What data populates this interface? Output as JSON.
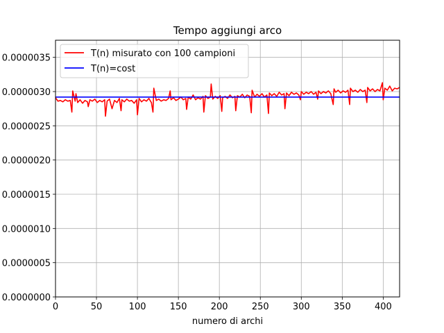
{
  "chart_data": {
    "type": "line",
    "title": "Tempo aggiungi arco",
    "xlabel": "numero di archi",
    "ylabel": "",
    "xlim": [
      0,
      420
    ],
    "ylim": [
      0.0,
      3.75e-06
    ],
    "xticks": [
      0,
      50,
      100,
      150,
      200,
      250,
      300,
      350,
      400
    ],
    "yticks": [
      0.0,
      5e-07,
      1e-06,
      1.5e-06,
      2e-06,
      2.5e-06,
      3e-06,
      3.5e-06
    ],
    "xtick_labels": [
      "0",
      "50",
      "100",
      "150",
      "200",
      "250",
      "300",
      "350",
      "400"
    ],
    "ytick_labels": [
      "0.0000000",
      "0.0000005",
      "0.0000010",
      "0.0000015",
      "0.0000020",
      "0.0000025",
      "0.0000030",
      "0.0000035"
    ],
    "grid": true,
    "legend_position": "upper-left",
    "series": [
      {
        "name": "T(n) misurato con 100 campioni",
        "color": "#ff0000",
        "x": [
          0,
          3,
          6,
          9,
          12,
          15,
          18,
          20,
          21,
          24,
          25,
          27,
          30,
          33,
          36,
          39,
          40,
          42,
          45,
          48,
          51,
          54,
          57,
          60,
          61,
          63,
          66,
          69,
          72,
          75,
          78,
          80,
          81,
          84,
          87,
          90,
          93,
          96,
          99,
          100,
          102,
          105,
          108,
          111,
          114,
          117,
          119,
          120,
          123,
          126,
          129,
          132,
          135,
          138,
          140,
          141,
          144,
          147,
          150,
          153,
          156,
          159,
          160,
          162,
          165,
          168,
          171,
          174,
          177,
          180,
          181,
          183,
          186,
          189,
          190,
          192,
          195,
          198,
          201,
          203,
          204,
          207,
          210,
          213,
          216,
          219,
          220,
          222,
          225,
          228,
          231,
          234,
          237,
          239,
          240,
          243,
          246,
          249,
          252,
          255,
          258,
          260,
          261,
          264,
          267,
          270,
          273,
          276,
          279,
          280,
          282,
          285,
          288,
          291,
          294,
          297,
          299,
          300,
          303,
          306,
          309,
          312,
          315,
          318,
          320,
          321,
          324,
          327,
          330,
          333,
          336,
          339,
          340,
          342,
          345,
          348,
          351,
          354,
          357,
          359,
          360,
          363,
          366,
          369,
          372,
          375,
          378,
          380,
          381,
          384,
          387,
          390,
          393,
          396,
          399,
          400,
          402,
          405,
          408,
          411,
          414,
          417,
          420
        ],
        "y": [
          2.91e-06,
          2.86e-06,
          2.87e-06,
          2.85e-06,
          2.88e-06,
          2.86e-06,
          2.87e-06,
          2.7e-06,
          3.01e-06,
          2.86e-06,
          2.97e-06,
          2.84e-06,
          2.88e-06,
          2.83e-06,
          2.87e-06,
          2.85e-06,
          2.78e-06,
          2.88e-06,
          2.86e-06,
          2.89e-06,
          2.84e-06,
          2.87e-06,
          2.85e-06,
          2.88e-06,
          2.64e-06,
          2.86e-06,
          2.89e-06,
          2.75e-06,
          2.87e-06,
          2.84e-06,
          2.9e-06,
          2.72e-06,
          2.88e-06,
          2.85e-06,
          2.89e-06,
          2.86e-06,
          2.87e-06,
          2.83e-06,
          2.88e-06,
          2.66e-06,
          2.9e-06,
          2.85e-06,
          2.88e-06,
          2.86e-06,
          2.9e-06,
          2.84e-06,
          2.7e-06,
          3.05e-06,
          2.87e-06,
          2.89e-06,
          2.86e-06,
          2.88e-06,
          2.87e-06,
          2.9e-06,
          3.01e-06,
          2.88e-06,
          2.91e-06,
          2.87e-06,
          2.89e-06,
          2.92e-06,
          2.88e-06,
          2.9e-06,
          2.74e-06,
          2.92e-06,
          2.89e-06,
          2.95e-06,
          2.88e-06,
          2.91e-06,
          2.89e-06,
          2.93e-06,
          2.7e-06,
          2.94e-06,
          2.9e-06,
          2.92e-06,
          3.11e-06,
          2.89e-06,
          2.93e-06,
          2.9e-06,
          2.94e-06,
          2.71e-06,
          2.91e-06,
          2.93e-06,
          2.9e-06,
          2.95e-06,
          2.91e-06,
          2.93e-06,
          2.72e-06,
          2.94e-06,
          2.92e-06,
          2.96e-06,
          2.91e-06,
          2.95e-06,
          2.93e-06,
          2.69e-06,
          3.02e-06,
          2.92e-06,
          2.96e-06,
          2.93e-06,
          2.97e-06,
          2.92e-06,
          2.95e-06,
          2.68e-06,
          2.98e-06,
          2.94e-06,
          2.97e-06,
          2.93e-06,
          2.99e-06,
          2.95e-06,
          2.97e-06,
          2.75e-06,
          2.98e-06,
          2.94e-06,
          2.99e-06,
          2.96e-06,
          2.98e-06,
          2.95e-06,
          2.88e-06,
          3e-06,
          2.96e-06,
          2.99e-06,
          2.97e-06,
          3e-06,
          2.96e-06,
          2.99e-06,
          2.89e-06,
          3.01e-06,
          2.97e-06,
          3e-06,
          2.98e-06,
          3.01e-06,
          2.97e-06,
          2.81e-06,
          3.04e-06,
          2.99e-06,
          3.02e-06,
          2.98e-06,
          3.01e-06,
          2.99e-06,
          3.02e-06,
          2.81e-06,
          3.05e-06,
          3e-06,
          3.02e-06,
          2.99e-06,
          3.03e-06,
          3e-06,
          3.02e-06,
          2.84e-06,
          3.06e-06,
          3.01e-06,
          3.04e-06,
          3e-06,
          3.03e-06,
          3.01e-06,
          3.13e-06,
          2.88e-06,
          3.05e-06,
          3.02e-06,
          3.08e-06,
          3.01e-06,
          3.05e-06,
          3.04e-06,
          3.06e-06
        ]
      },
      {
        "name": "T(n)=cost",
        "color": "#0000ff",
        "x": [
          0,
          420
        ],
        "y": [
          2.92e-06,
          2.92e-06
        ]
      }
    ]
  }
}
